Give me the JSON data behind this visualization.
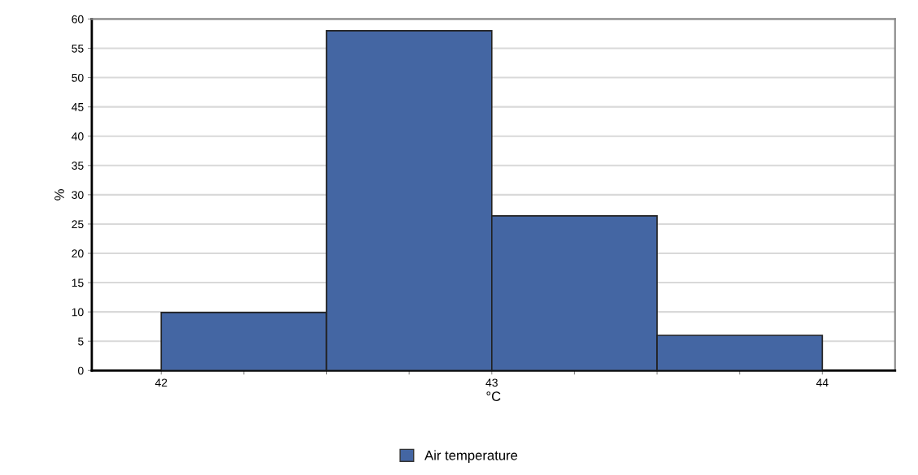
{
  "chart_data": {
    "type": "histogram",
    "xlabel": "°C",
    "ylabel": "%",
    "bins": [
      42,
      42.5,
      43,
      43.5,
      44
    ],
    "series": [
      {
        "name": "Air temperature",
        "color": "#4466a3",
        "values": [
          9.9,
          58.0,
          26.4,
          6.0
        ]
      }
    ],
    "xlim": [
      41.79,
      44.22
    ],
    "ylim": [
      0,
      60
    ],
    "xticks": [
      42,
      {
        "value": 42.25,
        "label": null
      },
      {
        "value": 42.5,
        "label": null
      },
      {
        "value": 42.75,
        "label": null
      },
      43,
      {
        "value": 43.25,
        "label": null
      },
      {
        "value": 43.5,
        "label": null
      },
      {
        "value": 43.75,
        "label": null
      },
      44
    ],
    "yticks": [
      0,
      5,
      10,
      15,
      20,
      25,
      30,
      35,
      40,
      45,
      50,
      55,
      60
    ],
    "grid": "y",
    "legend": "bottom"
  }
}
